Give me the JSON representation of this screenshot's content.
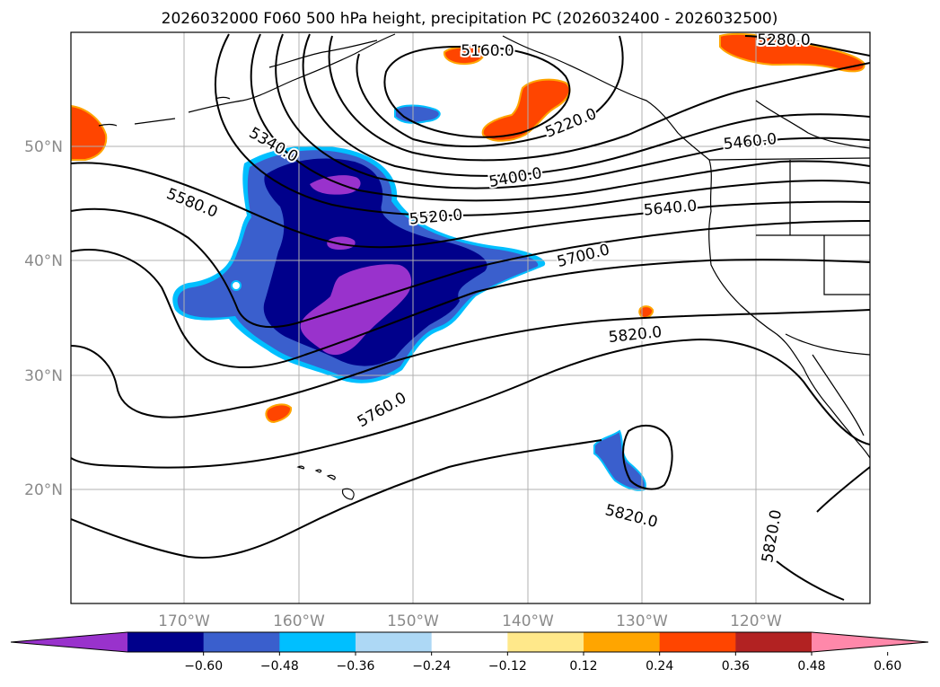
{
  "title": "2026032000 F060 500 hPa height, precipitation PC (2026032400 - 2026032500)",
  "lat_ticks": [
    "50°N",
    "40°N",
    "30°N",
    "20°N"
  ],
  "lon_ticks": [
    "170°W",
    "160°W",
    "150°W",
    "140°W",
    "130°W",
    "120°W"
  ],
  "contour_labels": [
    "5160.0",
    "5220.0",
    "5280.0",
    "5340.0",
    "5400.0",
    "5460.0",
    "5520.0",
    "5580.0",
    "5640.0",
    "5700.0",
    "5760.0",
    "5820.0",
    "5820.0",
    "5820.0"
  ],
  "colorbar": {
    "ticks": [
      "−0.60",
      "−0.48",
      "−0.36",
      "−0.24",
      "−0.12",
      "0.12",
      "0.24",
      "0.36",
      "0.48",
      "0.60"
    ],
    "colors": [
      "#9932cc",
      "#00008b",
      "#3a5fcd",
      "#00bfff",
      "#add8f5",
      "#ffffff",
      "#ffe88a",
      "#ffa500",
      "#ff4500",
      "#b22222",
      "#ff88aa"
    ]
  },
  "colors": {
    "precip_neg_strong": "#9932cc",
    "precip_neg_dark": "#00008b",
    "precip_neg_mid": "#3a5fcd",
    "precip_neg_light": "#00bfff",
    "precip_pos_orange": "#ff4500",
    "precip_pos_yellow": "#ffa500"
  }
}
